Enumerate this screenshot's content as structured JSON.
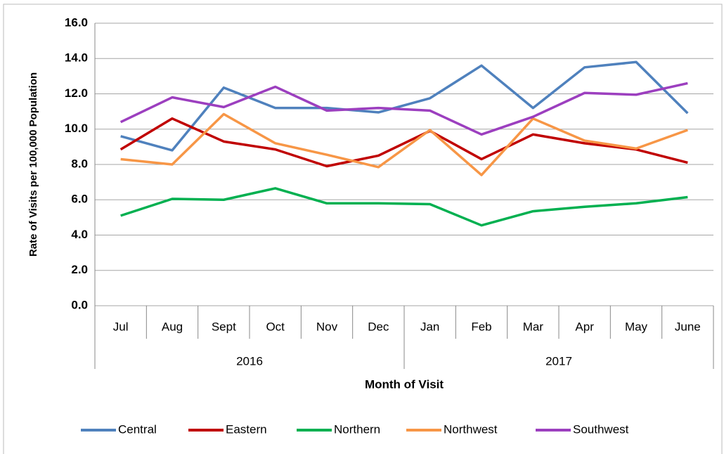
{
  "chart_data": {
    "type": "line",
    "x_label": "Month of Visit",
    "y_label": "Rate of Visits per 100,000 Population",
    "categories": [
      "Jul",
      "Aug",
      "Sept",
      "Oct",
      "Nov",
      "Dec",
      "Jan",
      "Feb",
      "Mar",
      "Apr",
      "May",
      "June"
    ],
    "x_groups": [
      "2016",
      "2017"
    ],
    "series": [
      {
        "name": "Central",
        "color": "#4f81bd",
        "values": [
          9.6,
          8.8,
          12.35,
          11.2,
          11.2,
          10.95,
          11.75,
          13.6,
          11.2,
          13.5,
          13.8,
          10.9
        ]
      },
      {
        "name": "Eastern",
        "color": "#c00000",
        "values": [
          8.85,
          10.6,
          9.3,
          8.85,
          7.9,
          8.5,
          9.9,
          8.3,
          9.7,
          9.2,
          8.85,
          8.1
        ]
      },
      {
        "name": "Northern",
        "color": "#00b050",
        "values": [
          5.1,
          6.05,
          6.0,
          6.65,
          5.8,
          5.8,
          5.75,
          4.55,
          5.35,
          5.6,
          5.8,
          6.15
        ]
      },
      {
        "name": "Northwest",
        "color": "#f79646",
        "values": [
          8.3,
          8.0,
          10.85,
          9.2,
          8.55,
          7.85,
          9.95,
          7.4,
          10.6,
          9.35,
          8.9,
          9.95
        ]
      },
      {
        "name": "Southwest",
        "color": "#9c3fbf",
        "values": [
          10.4,
          11.8,
          11.25,
          12.4,
          11.05,
          11.2,
          11.05,
          9.7,
          10.7,
          12.05,
          11.95,
          12.6
        ]
      }
    ],
    "ylim": [
      0,
      16
    ],
    "yticks": [
      {
        "value": 0,
        "label": "0.0"
      },
      {
        "value": 2,
        "label": "2.0"
      },
      {
        "value": 4,
        "label": "4.0"
      },
      {
        "value": 6,
        "label": "6.0"
      },
      {
        "value": 8,
        "label": "8.0"
      },
      {
        "value": 10,
        "label": "10.0"
      },
      {
        "value": 12,
        "label": "12.0"
      },
      {
        "value": 14,
        "label": "14.0"
      },
      {
        "value": 16,
        "label": "16.0"
      }
    ],
    "grid": true,
    "legend": "bottom"
  }
}
